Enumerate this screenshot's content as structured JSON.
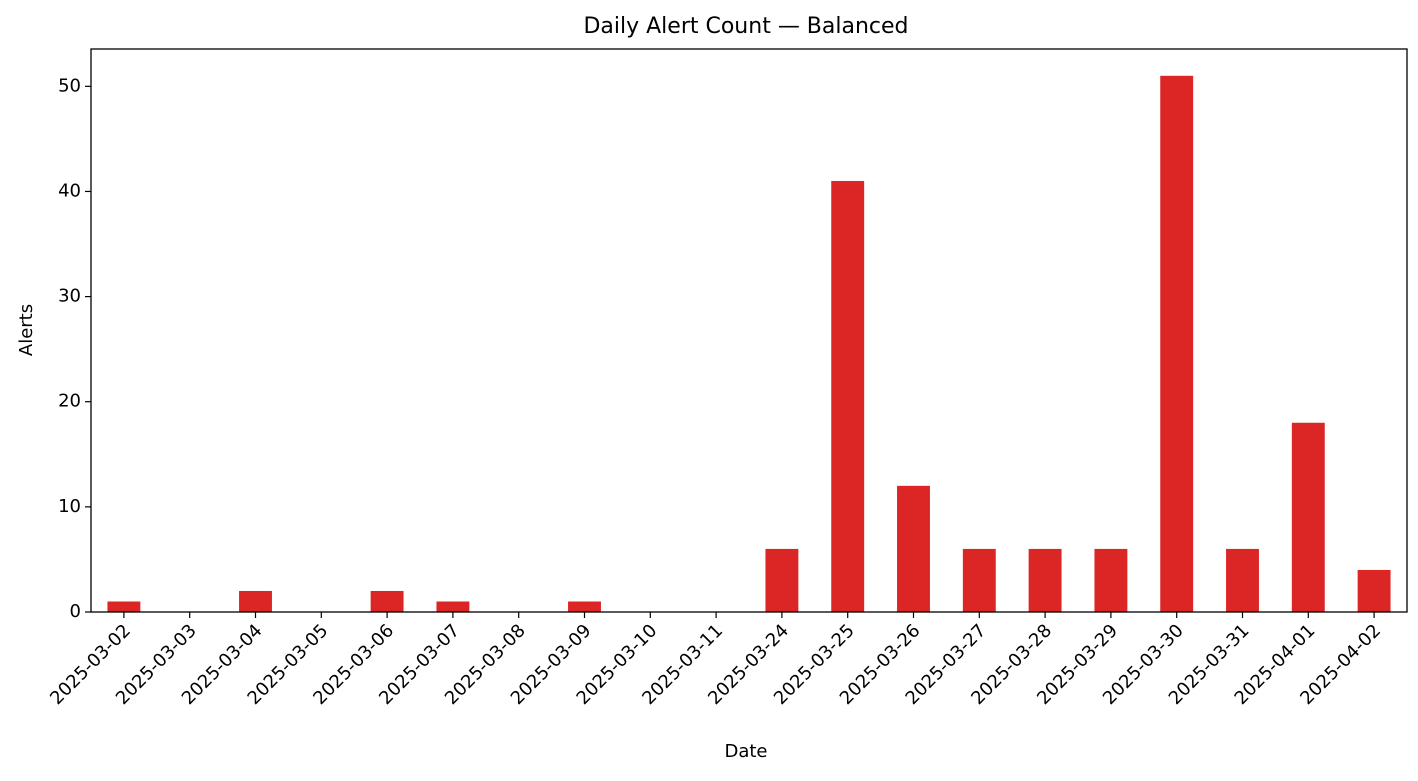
{
  "chart_data": {
    "type": "bar",
    "title": "Daily Alert Count — Balanced",
    "x_label": "Date",
    "y_label": "Alerts",
    "categories": [
      "2025-03-02",
      "2025-03-03",
      "2025-03-04",
      "2025-03-05",
      "2025-03-06",
      "2025-03-07",
      "2025-03-08",
      "2025-03-09",
      "2025-03-10",
      "2025-03-11",
      "2025-03-24",
      "2025-03-25",
      "2025-03-26",
      "2025-03-27",
      "2025-03-28",
      "2025-03-29",
      "2025-03-30",
      "2025-03-31",
      "2025-04-01",
      "2025-04-02"
    ],
    "values": [
      1,
      0,
      2,
      0,
      2,
      1,
      0,
      1,
      0,
      0,
      6,
      41,
      12,
      6,
      6,
      6,
      51,
      6,
      18,
      4
    ],
    "color": "#dc2626",
    "ylim": [
      0,
      53.55
    ],
    "yticks": [
      0,
      10,
      20,
      30,
      40,
      50
    ],
    "grid": false
  }
}
